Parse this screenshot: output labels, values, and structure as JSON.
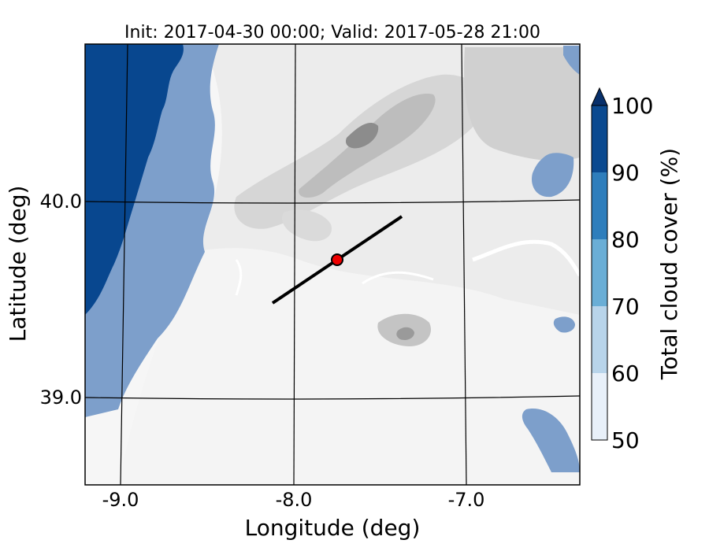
{
  "title": "Init: 2017-04-30 00:00; Valid: 2017-05-28 21:00",
  "x_axis": {
    "label": "Longitude (deg)",
    "ticks": [
      "-9.0",
      "-8.0",
      "-7.0"
    ]
  },
  "y_axis": {
    "label": "Latitude (deg)",
    "ticks": [
      "40.0",
      "39.0"
    ]
  },
  "colorbar": {
    "label": "Total cloud cover (%)",
    "ticks": [
      "50",
      "60",
      "70",
      "80",
      "90",
      "100"
    ],
    "colors": [
      "#e8f0f9",
      "#b8d4ea",
      "#6aaed6",
      "#2e7ebc",
      "#0b4a90",
      "#08306b"
    ],
    "extend": "max"
  },
  "map": {
    "terrain_colors": [
      "#f7f7f7",
      "#ebebeb",
      "#dcdcdc",
      "#c8c8c8",
      "#aaaaaa",
      "#7a7a7a"
    ],
    "ocean_color": "#08478f",
    "cloud_light": "#7d9fcb",
    "cross_section_line": {
      "from": [
        -8.12,
        39.48
      ],
      "to": [
        -7.37,
        39.92
      ]
    },
    "marker": {
      "lon": -7.75,
      "lat": 39.69,
      "color": "#ee0000"
    }
  }
}
